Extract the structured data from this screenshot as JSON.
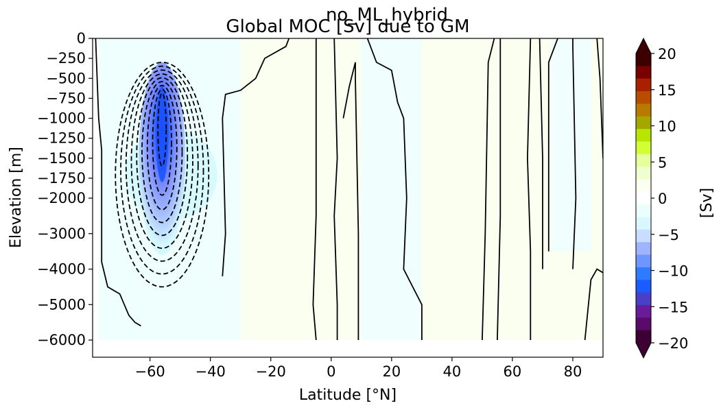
{
  "chart_data": {
    "type": "heatmap",
    "suptitle": "no_ML_hybrid",
    "title": "Global MOC [Sv] due to GM",
    "xlabel": "Latitude [°N]",
    "ylabel": "Elevation [m]",
    "xlim": [
      -79,
      90
    ],
    "ylim": [
      -6500,
      0
    ],
    "x_ticks": [
      -60,
      -40,
      -20,
      0,
      20,
      40,
      60,
      80
    ],
    "x_tick_labels": [
      "−60",
      "−40",
      "−20",
      "0",
      "20",
      "40",
      "60",
      "80"
    ],
    "y_ticks": [
      0,
      -250,
      -500,
      -750,
      -1000,
      -1250,
      -1500,
      -1750,
      -2000,
      -3000,
      -4000,
      -5000,
      -6000
    ],
    "y_tick_labels": [
      "0",
      "−250",
      "−500",
      "−750",
      "−1000",
      "−1250",
      "−1500",
      "−1750",
      "−2000",
      "−3000",
      "−4000",
      "−5000",
      "−6000"
    ],
    "colorbar": {
      "label": "[Sv]",
      "range": [
        -20,
        20
      ],
      "ticks": [
        20,
        15,
        10,
        5,
        0,
        -5,
        -10,
        -15,
        -20
      ],
      "tick_labels": [
        "20",
        "15",
        "10",
        "5",
        "0",
        "−5",
        "−10",
        "−15",
        "−20"
      ],
      "extend": "both",
      "colors": [
        "#3d0033",
        "#5a0a6b",
        "#6a1b9a",
        "#4a3fc8",
        "#1a5cff",
        "#2e7bff",
        "#6f95ff",
        "#9fb4ff",
        "#c8ddff",
        "#d8f7ff",
        "#eafffb",
        "#ffffff",
        "#fbfff0",
        "#f0ffcf",
        "#e6ff9a",
        "#d2ff33",
        "#b8e600",
        "#a6a600",
        "#b87a00",
        "#b84d00",
        "#a82000",
        "#7a0000",
        "#3d0000"
      ]
    },
    "features": {
      "negative_cell": {
        "center_lat": -56,
        "center_depth_m": -1200,
        "min_value_sv": -15,
        "lat_range": [
          -66,
          -40
        ],
        "depth_range_m": [
          -4500,
          -300
        ]
      },
      "zero_contour_style": "solid",
      "negative_contour_style": "dashed",
      "masked_bottom_depth_m": -6000
    }
  }
}
